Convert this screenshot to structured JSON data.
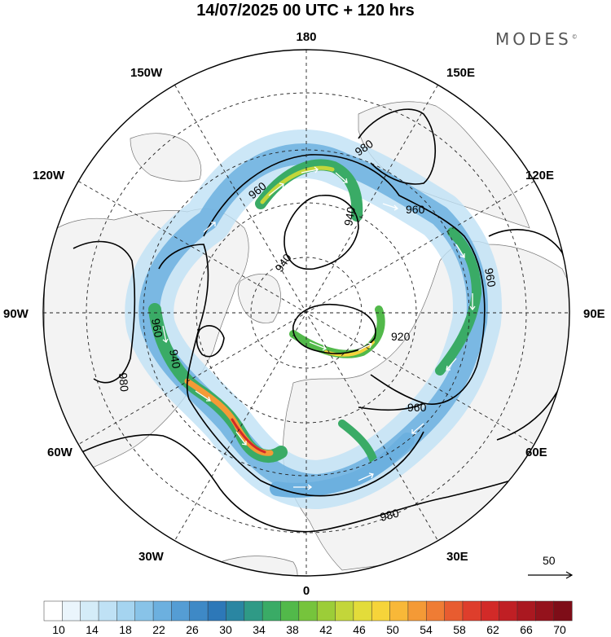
{
  "title": "14/07/2025  00 UTC  + 120 hrs",
  "brand": "MODES",
  "brand_mark": "©",
  "longitude_labels": {
    "lon_180": "180",
    "lon_150E": "150E",
    "lon_120E": "120E",
    "lon_90E": "90E",
    "lon_60E": "60E",
    "lon_30E": "30E",
    "lon_0": "0",
    "lon_30W": "30W",
    "lon_60W": "60W",
    "lon_90W": "90W",
    "lon_120W": "120W",
    "lon_150W": "150W"
  },
  "contour_labels": [
    "980",
    "960",
    "940",
    "960",
    "940",
    "920",
    "960",
    "980",
    "960",
    "940",
    "980",
    "960"
  ],
  "reference_vector": {
    "value": "50",
    "arrow_icon": "reference-arrow-icon"
  },
  "colorbar": {
    "labels": [
      "10",
      "14",
      "18",
      "22",
      "26",
      "30",
      "34",
      "38",
      "42",
      "46",
      "50",
      "54",
      "58",
      "62",
      "66",
      "70"
    ],
    "colors": [
      "#ffffff",
      "#eaf5fc",
      "#d4ecf8",
      "#bfe1f5",
      "#a5d4f0",
      "#88c3e8",
      "#6cb0df",
      "#559dd4",
      "#3e89c6",
      "#2d78b8",
      "#2a86a2",
      "#2f9a86",
      "#3aab66",
      "#52b94a",
      "#76c43c",
      "#9ccd38",
      "#c3d63a",
      "#e3dc3a",
      "#f6d43a",
      "#f8b838",
      "#f49a36",
      "#ef7c34",
      "#e85c30",
      "#de3e2c",
      "#d22a28",
      "#c01f24",
      "#aa1820",
      "#94121c",
      "#7e0d18"
    ]
  },
  "colors": {
    "land": "#f3f3f3",
    "ocean": "#ffffff",
    "contour": "#000000",
    "coast": "#5a5a5a",
    "grid": "#222222"
  }
}
